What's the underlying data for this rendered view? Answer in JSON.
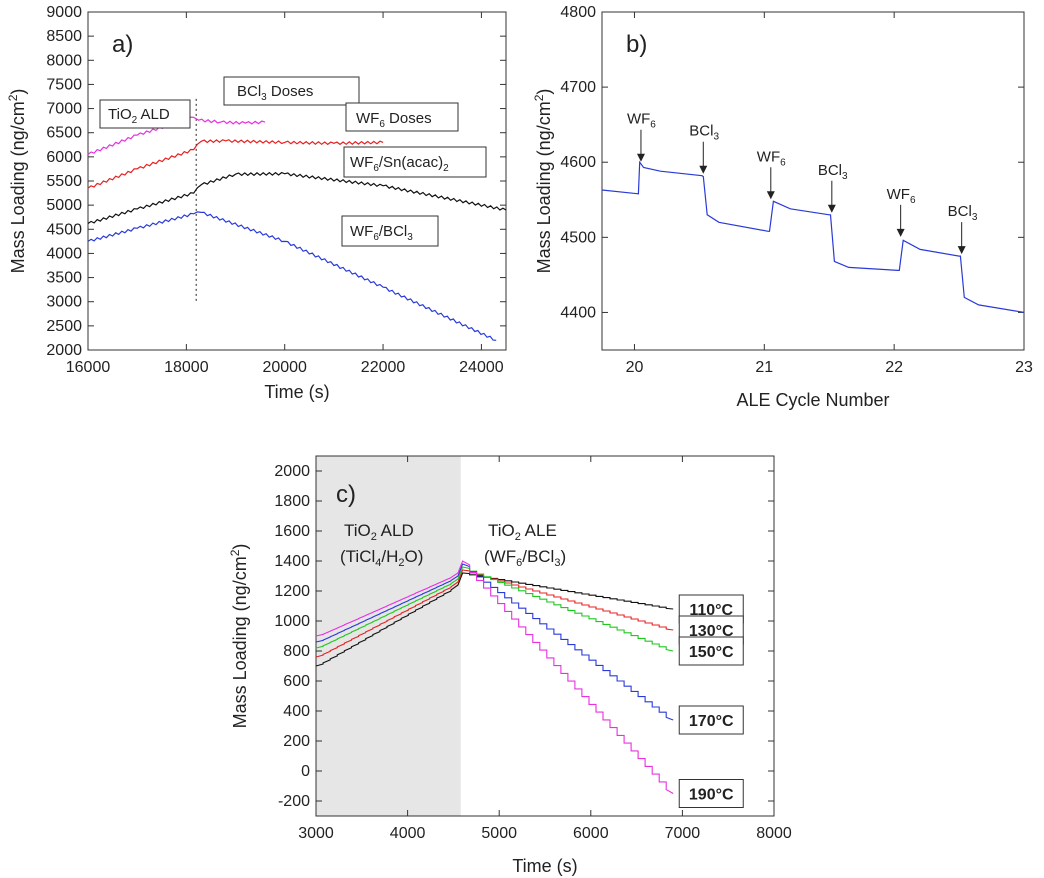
{
  "chart_data": [
    {
      "id": "a",
      "type": "line",
      "panel_label": "a)",
      "xlabel": "Time (s)",
      "ylabel": "Mass Loading (ng/cm",
      "ylabel_sup": "2",
      "ylabel_end": ")",
      "xlim": [
        16000,
        24500
      ],
      "ylim": [
        2000,
        9000
      ],
      "xticks": [
        16000,
        18000,
        20000,
        22000,
        24000
      ],
      "yticks": [
        2000,
        2500,
        3000,
        3500,
        4000,
        4500,
        5000,
        5500,
        6000,
        6500,
        7000,
        7500,
        8000,
        8500,
        9000
      ],
      "divider_x": 18200,
      "annotations": {
        "tio2_ald": {
          "main": "TiO",
          "sub": "2",
          "rest": " ALD"
        },
        "bcl3": {
          "main": "BCl",
          "sub": "3",
          "rest": " Doses",
          "color": "#e830e0"
        },
        "wf6": {
          "main": "WF",
          "sub": "6",
          "rest": " Doses",
          "color": "#e82020"
        },
        "wf6_snacac": {
          "main": "WF",
          "sub": "6",
          "rest": "/Sn(acac)",
          "sub2": "2",
          "color": "#222222"
        },
        "wf6_bcl3": {
          "main": "WF",
          "sub": "6",
          "rest": "/BCl",
          "sub2": "3",
          "color": "#2a3ad8"
        }
      },
      "series": [
        {
          "color": "#e830e0",
          "x": [
            16000,
            17000,
            18150,
            18250,
            18700,
            19200,
            19600
          ],
          "y": [
            6050,
            6450,
            6820,
            6760,
            6720,
            6700,
            6720
          ]
        },
        {
          "color": "#e82020",
          "x": [
            16000,
            17000,
            18150,
            18300,
            18800,
            20000,
            21000,
            22000
          ],
          "y": [
            5350,
            5750,
            6150,
            6320,
            6330,
            6300,
            6280,
            6300
          ]
        },
        {
          "color": "#111111",
          "x": [
            16000,
            17000,
            18150,
            18300,
            19000,
            20000,
            22000,
            24500
          ],
          "y": [
            4620,
            4920,
            5250,
            5420,
            5640,
            5650,
            5400,
            4900
          ]
        },
        {
          "color": "#2a3ad8",
          "x": [
            16000,
            17000,
            18150,
            18300,
            20000,
            22000,
            24300
          ],
          "y": [
            4250,
            4520,
            4820,
            4850,
            4250,
            3300,
            2200
          ]
        }
      ]
    },
    {
      "id": "b",
      "type": "line",
      "panel_label": "b)",
      "xlabel": "ALE Cycle Number",
      "ylabel": "Mass Loading (ng/cm",
      "ylabel_sup": "2",
      "ylabel_end": ")",
      "xlim": [
        19.75,
        23
      ],
      "ylim": [
        4350,
        4800
      ],
      "xticks": [
        20,
        21,
        22,
        23
      ],
      "yticks": [
        4400,
        4500,
        4600,
        4700,
        4800
      ],
      "annotations": [
        {
          "main": "WF",
          "sub": "6",
          "x": 20.05,
          "y": 4598
        },
        {
          "main": "BCl",
          "sub": "3",
          "x": 20.53,
          "y": 4582
        },
        {
          "main": "WF",
          "sub": "6",
          "x": 21.05,
          "y": 4548
        },
        {
          "main": "BCl",
          "sub": "3",
          "x": 21.52,
          "y": 4530
        },
        {
          "main": "WF",
          "sub": "6",
          "x": 22.05,
          "y": 4498
        },
        {
          "main": "BCl",
          "sub": "3",
          "x": 22.52,
          "y": 4475
        }
      ],
      "series": [
        {
          "color": "#2a3ad8",
          "x": [
            19.75,
            20.03,
            20.04,
            20.07,
            20.2,
            20.52,
            20.53,
            20.56,
            20.65,
            21.03,
            21.04,
            21.07,
            21.2,
            21.5,
            21.51,
            21.54,
            21.65,
            22.03,
            22.04,
            22.07,
            22.2,
            22.5,
            22.51,
            22.54,
            22.65,
            23.0
          ],
          "y": [
            4563,
            4558,
            4600,
            4593,
            4588,
            4582,
            4581,
            4530,
            4520,
            4508,
            4508,
            4548,
            4538,
            4530,
            4530,
            4468,
            4460,
            4456,
            4456,
            4496,
            4484,
            4475,
            4475,
            4420,
            4410,
            4400
          ]
        }
      ]
    },
    {
      "id": "c",
      "type": "line",
      "panel_label": "c)",
      "xlabel": "Time (s)",
      "ylabel": "Mass Loading (ng/cm",
      "ylabel_sup": "2",
      "ylabel_end": ")",
      "xlim": [
        3000,
        8000
      ],
      "ylim": [
        -300,
        2100
      ],
      "xticks": [
        3000,
        4000,
        5000,
        6000,
        7000,
        8000
      ],
      "yticks": [
        -200,
        0,
        200,
        400,
        600,
        800,
        1000,
        1200,
        1400,
        1600,
        1800,
        2000
      ],
      "shaded_region": [
        3000,
        4580
      ],
      "annotations": {
        "ald_line1": {
          "main": "TiO",
          "sub": "2",
          "rest": " ALD"
        },
        "ald_line2": {
          "main": "(TiCl",
          "sub": "4",
          "rest": "/H",
          "sub2": "2",
          "rest2": "O)"
        },
        "ale_line1": {
          "main": "TiO",
          "sub": "2",
          "rest": " ALE"
        },
        "ale_line2": {
          "main": "(WF",
          "sub": "6",
          "rest": "/BCl",
          "sub2": "3",
          "rest2": ")"
        }
      },
      "series": [
        {
          "name": "110°C",
          "color": "#111111",
          "x": [
            3000,
            4550,
            4600,
            6900
          ],
          "y": [
            700,
            1240,
            1320,
            1080
          ]
        },
        {
          "name": "130°C",
          "color": "#e82020",
          "x": [
            3000,
            4550,
            4600,
            6900
          ],
          "y": [
            760,
            1260,
            1340,
            940
          ]
        },
        {
          "name": "150°C",
          "color": "#1ec81e",
          "x": [
            3000,
            4550,
            4600,
            6900
          ],
          "y": [
            820,
            1280,
            1360,
            800
          ]
        },
        {
          "name": "170°C",
          "color": "#2a3ad8",
          "x": [
            3000,
            4550,
            4600,
            6900
          ],
          "y": [
            860,
            1300,
            1380,
            340
          ]
        },
        {
          "name": "190°C",
          "color": "#e830e0",
          "x": [
            3000,
            4550,
            4600,
            6900
          ],
          "y": [
            900,
            1320,
            1400,
            -150
          ]
        }
      ]
    }
  ]
}
